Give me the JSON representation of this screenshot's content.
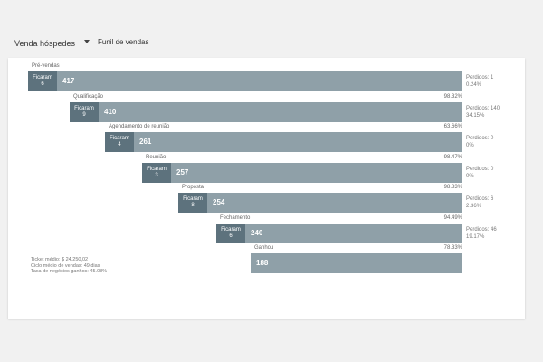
{
  "header": {
    "pipeline_label": "Venda hóspedes",
    "view_label": "Funil de vendas"
  },
  "stages": [
    {
      "name": "Pré-vendas",
      "pct": "",
      "count": "417",
      "stayed_label": "Ficaram",
      "stayed_value": "6",
      "lost_label": "Perdidos: 1",
      "lost_pct": "0.24%"
    },
    {
      "name": "Qualificação",
      "pct": "98.32%",
      "count": "410",
      "stayed_label": "Ficaram",
      "stayed_value": "9",
      "lost_label": "Perdidos: 140",
      "lost_pct": "34.15%"
    },
    {
      "name": "Agendamento de reunião",
      "pct": "63.66%",
      "count": "261",
      "stayed_label": "Ficaram",
      "stayed_value": "4",
      "lost_label": "Perdidos: 0",
      "lost_pct": "0%"
    },
    {
      "name": "Reunião",
      "pct": "98.47%",
      "count": "257",
      "stayed_label": "Ficaram",
      "stayed_value": "3",
      "lost_label": "Perdidos: 0",
      "lost_pct": "0%"
    },
    {
      "name": "Proposta",
      "pct": "98.83%",
      "count": "254",
      "stayed_label": "Ficaram",
      "stayed_value": "8",
      "lost_label": "Perdidos: 6",
      "lost_pct": "2.36%"
    },
    {
      "name": "Fechamento",
      "pct": "94.49%",
      "count": "240",
      "stayed_label": "Ficaram",
      "stayed_value": "6",
      "lost_label": "Perdidos: 46",
      "lost_pct": "19.17%"
    },
    {
      "name": "Ganhou",
      "pct": "78.33%",
      "count": "188",
      "stayed_label": "",
      "stayed_value": "",
      "lost_label": "",
      "lost_pct": ""
    }
  ],
  "summary": {
    "ticket": "Ticket médio: $ 24.250,02",
    "cycle": "Ciclo médio de vendas: 49 dias",
    "rate": "Taxa de negócios ganhos: 45.08%"
  }
}
